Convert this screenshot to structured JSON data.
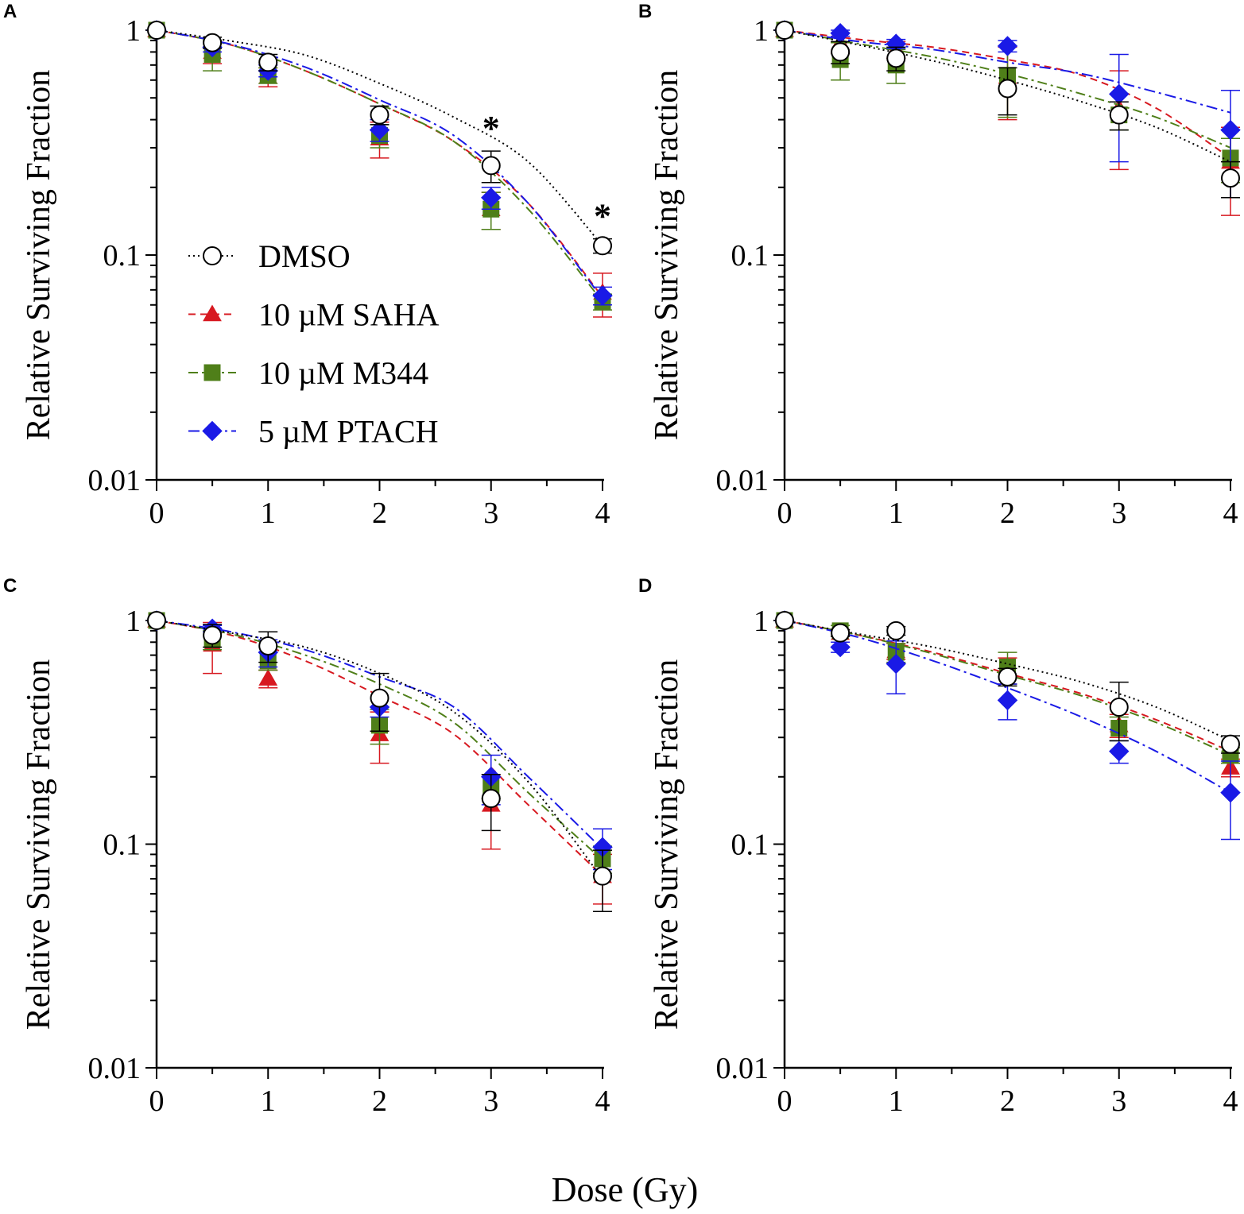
{
  "figure": {
    "xlabel": "Dose (Gy)",
    "series_styles": [
      {
        "name": "DMSO",
        "color": "#000000",
        "marker": "circle",
        "dash": "2 4"
      },
      {
        "name": "10 µM SAHA",
        "color": "#d71920",
        "marker": "triangle",
        "dash": "9 6"
      },
      {
        "name": "10 µM M344",
        "color": "#4f7f19",
        "marker": "square",
        "dash": "12 5 3 5"
      },
      {
        "name": "5 µM PTACH",
        "color": "#1a1ae6",
        "marker": "diamond",
        "dash": "14 5 3 5"
      }
    ],
    "legend_labels": [
      "DMSO",
      "10 µM SAHA",
      "10 µM M344",
      "5 µM PTACH"
    ]
  },
  "chart_data": [
    {
      "panel": "A",
      "type": "scatter",
      "xlabel": "Dose (Gy)",
      "ylabel": "Relative Surviving Fraction",
      "yscale": "log",
      "xlim": [
        0,
        4
      ],
      "ylim": [
        0.01,
        1
      ],
      "xticks": [
        "0",
        "1",
        "2",
        "3",
        "4"
      ],
      "yticks": [
        "0.01",
        "0.1",
        "1"
      ],
      "legend": "left-center",
      "significance": [
        {
          "x": 3,
          "label": "*"
        },
        {
          "x": 4,
          "label": "*"
        }
      ],
      "series": [
        {
          "name": "DMSO",
          "x": [
            0,
            0.5,
            1,
            2,
            3,
            4
          ],
          "y": [
            1,
            0.88,
            0.72,
            0.42,
            0.25,
            0.11
          ],
          "err": [
            0,
            0.05,
            0.06,
            0.04,
            0.04,
            0.008
          ],
          "curve": [
            1,
            0.895,
            0.775,
            0.58,
            0.41,
            0.26,
            0.11
          ]
        },
        {
          "name": "10 µM SAHA",
          "x": [
            0,
            0.5,
            1,
            2,
            3,
            4
          ],
          "y": [
            1,
            0.8,
            0.62,
            0.33,
            0.16,
            0.068
          ],
          "err": [
            0,
            0.09,
            0.06,
            0.06,
            0.03,
            0.015
          ],
          "curve": [
            1,
            0.86,
            0.66,
            0.47,
            0.32,
            0.17,
            0.065
          ]
        },
        {
          "name": "10 µM M344",
          "x": [
            0,
            0.5,
            1,
            2,
            3,
            4
          ],
          "y": [
            1,
            0.78,
            0.63,
            0.34,
            0.16,
            0.062
          ],
          "err": [
            0,
            0.12,
            0.05,
            0.04,
            0.03,
            0.005
          ],
          "curve": [
            1,
            0.86,
            0.66,
            0.47,
            0.32,
            0.16,
            0.062
          ]
        },
        {
          "name": "5 µM PTACH",
          "x": [
            0,
            0.5,
            1,
            2,
            3,
            4
          ],
          "y": [
            1,
            0.84,
            0.66,
            0.36,
            0.18,
            0.066
          ],
          "err": [
            0,
            0.04,
            0.04,
            0.04,
            0.02,
            0.006
          ],
          "curve": [
            1,
            0.865,
            0.685,
            0.49,
            0.34,
            0.17,
            0.064
          ]
        }
      ]
    },
    {
      "panel": "B",
      "type": "scatter",
      "xlabel": "Dose (Gy)",
      "ylabel": "Relative Surviving Fraction",
      "yscale": "log",
      "xlim": [
        0,
        4
      ],
      "ylim": [
        0.01,
        1
      ],
      "xticks": [
        "0",
        "1",
        "2",
        "3",
        "4"
      ],
      "yticks": [
        "0.01",
        "0.1",
        "1"
      ],
      "series": [
        {
          "name": "DMSO",
          "x": [
            0,
            0.5,
            1,
            2,
            3,
            4
          ],
          "y": [
            1,
            0.8,
            0.75,
            0.55,
            0.42,
            0.22
          ],
          "err": [
            0,
            0.09,
            0.09,
            0.13,
            0.06,
            0.04
          ],
          "curve": [
            1,
            0.86,
            0.73,
            0.6,
            0.48,
            0.37,
            0.26
          ]
        },
        {
          "name": "10 µM SAHA",
          "x": [
            0,
            0.5,
            1,
            2,
            3,
            4
          ],
          "y": [
            1,
            0.88,
            0.82,
            0.62,
            0.45,
            0.26
          ],
          "err": [
            0,
            0.09,
            0.07,
            0.22,
            0.21,
            0.11
          ],
          "curve": [
            1,
            0.91,
            0.84,
            0.74,
            0.63,
            0.45,
            0.27
          ]
        },
        {
          "name": "10 µM M344",
          "x": [
            0,
            0.5,
            1,
            2,
            3,
            4
          ],
          "y": [
            1,
            0.74,
            0.7,
            0.63,
            0.42,
            0.27
          ],
          "err": [
            0,
            0.14,
            0.12,
            0.22,
            0.06,
            0.06
          ],
          "curve": [
            1,
            0.87,
            0.76,
            0.64,
            0.52,
            0.41,
            0.3
          ]
        },
        {
          "name": "5 µM PTACH",
          "x": [
            0,
            0.5,
            1,
            2,
            3,
            4
          ],
          "y": [
            1,
            0.97,
            0.87,
            0.85,
            0.52,
            0.36
          ],
          "err": [
            0,
            0.03,
            0.04,
            0.05,
            0.26,
            0.18
          ],
          "curve": [
            1,
            0.89,
            0.82,
            0.72,
            0.64,
            0.53,
            0.43
          ]
        }
      ]
    },
    {
      "panel": "C",
      "type": "scatter",
      "xlabel": "Dose (Gy)",
      "ylabel": "Relative Surviving Fraction",
      "yscale": "log",
      "xlim": [
        0,
        4
      ],
      "ylim": [
        0.01,
        1
      ],
      "xticks": [
        "0",
        "1",
        "2",
        "3",
        "4"
      ],
      "yticks": [
        "0.01",
        "0.1",
        "1"
      ],
      "series": [
        {
          "name": "DMSO",
          "x": [
            0,
            0.5,
            1,
            2,
            3,
            4
          ],
          "y": [
            1,
            0.86,
            0.77,
            0.45,
            0.16,
            0.072
          ],
          "err": [
            0,
            0.1,
            0.12,
            0.13,
            0.045,
            0.022
          ],
          "curve": [
            1,
            0.88,
            0.76,
            0.58,
            0.39,
            0.19,
            0.07
          ]
        },
        {
          "name": "10 µM SAHA",
          "x": [
            0,
            0.5,
            1,
            2,
            3,
            4
          ],
          "y": [
            1,
            0.78,
            0.55,
            0.31,
            0.15,
            0.072
          ],
          "err": [
            0,
            0.2,
            0.05,
            0.08,
            0.055,
            0.018
          ],
          "curve": [
            1,
            0.86,
            0.66,
            0.46,
            0.31,
            0.15,
            0.072
          ]
        },
        {
          "name": "10 µM M344",
          "x": [
            0,
            0.5,
            1,
            2,
            3,
            4
          ],
          "y": [
            1,
            0.82,
            0.66,
            0.34,
            0.18,
            0.086
          ],
          "err": [
            0,
            0.08,
            0.06,
            0.06,
            0.02,
            0.012
          ],
          "curve": [
            1,
            0.87,
            0.7,
            0.52,
            0.35,
            0.17,
            0.085
          ]
        },
        {
          "name": "5 µM PTACH",
          "x": [
            0,
            0.5,
            1,
            2,
            3,
            4
          ],
          "y": [
            1,
            0.92,
            0.72,
            0.41,
            0.2,
            0.097
          ],
          "err": [
            0,
            0.03,
            0.1,
            0.04,
            0.05,
            0.02
          ],
          "curve": [
            1,
            0.89,
            0.74,
            0.56,
            0.41,
            0.2,
            0.095
          ]
        }
      ]
    },
    {
      "panel": "D",
      "type": "scatter",
      "xlabel": "Dose (Gy)",
      "ylabel": "Relative Surviving Fraction",
      "yscale": "log",
      "xlim": [
        0,
        4
      ],
      "ylim": [
        0.01,
        1
      ],
      "xticks": [
        "0",
        "1",
        "2",
        "3",
        "4"
      ],
      "yticks": [
        "0.01",
        "0.1",
        "1"
      ],
      "series": [
        {
          "name": "DMSO",
          "x": [
            0,
            0.5,
            1,
            2,
            3,
            4
          ],
          "y": [
            1,
            0.88,
            0.9,
            0.56,
            0.41,
            0.28
          ],
          "err": [
            0,
            0.03,
            0.04,
            0.05,
            0.12,
            0.025
          ],
          "curve": [
            1,
            0.87,
            0.76,
            0.64,
            0.53,
            0.41,
            0.29
          ]
        },
        {
          "name": "10 µM SAHA",
          "x": [
            0,
            0.5,
            1,
            2,
            3,
            4
          ],
          "y": [
            1,
            0.88,
            0.73,
            0.6,
            0.34,
            0.22
          ],
          "err": [
            0,
            0.03,
            0.06,
            0.08,
            0.04,
            0.02
          ],
          "curve": [
            1,
            0.86,
            0.72,
            0.58,
            0.47,
            0.36,
            0.26
          ]
        },
        {
          "name": "10 µM M344",
          "x": [
            0,
            0.5,
            1,
            2,
            3,
            4
          ],
          "y": [
            1,
            0.9,
            0.72,
            0.62,
            0.33,
            0.25
          ],
          "err": [
            0,
            0.05,
            0.07,
            0.1,
            0.04,
            0.02
          ],
          "curve": [
            1,
            0.86,
            0.71,
            0.57,
            0.46,
            0.35,
            0.25
          ]
        },
        {
          "name": "5 µM PTACH",
          "x": [
            0,
            0.5,
            1,
            2,
            3,
            4
          ],
          "y": [
            1,
            0.76,
            0.64,
            0.44,
            0.26,
            0.17
          ],
          "err": [
            0,
            0.04,
            0.17,
            0.08,
            0.03,
            0.065
          ],
          "curve": [
            1,
            0.84,
            0.66,
            0.5,
            0.37,
            0.26,
            0.17
          ]
        }
      ]
    }
  ]
}
